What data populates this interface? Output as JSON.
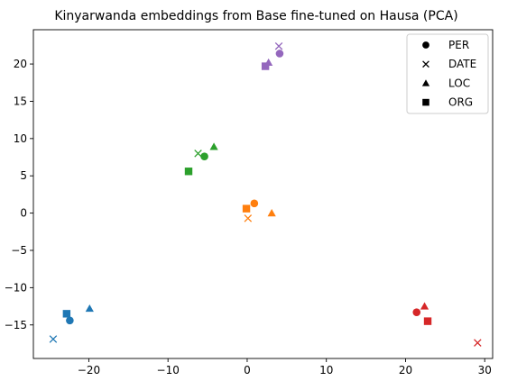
{
  "chart_data": {
    "type": "scatter",
    "title": "Kinyarwanda embeddings from Base fine-tuned on Hausa (PCA)",
    "xlabel": "",
    "ylabel": "",
    "xlim": [
      -27,
      31
    ],
    "ylim": [
      -19.5,
      24.6
    ],
    "xticks": [
      -20,
      -10,
      0,
      10,
      20,
      30
    ],
    "yticks": [
      -15,
      -10,
      -5,
      0,
      5,
      10,
      15,
      20
    ],
    "xtick_labels": [
      "−20",
      "−10",
      "0",
      "10",
      "20",
      "30"
    ],
    "ytick_labels": [
      "−15",
      "−10",
      "−5",
      "0",
      "5",
      "10",
      "15",
      "20"
    ],
    "grid": false,
    "legend": {
      "placement": "top-right",
      "entries": [
        {
          "label": "PER",
          "marker": "circle"
        },
        {
          "label": "DATE",
          "marker": "x"
        },
        {
          "label": "LOC",
          "marker": "triangle"
        },
        {
          "label": "ORG",
          "marker": "square"
        }
      ]
    },
    "groups": [
      {
        "color": "#1f77b4",
        "points": [
          {
            "cls": "PER",
            "x": -22.4,
            "y": -14.4
          },
          {
            "cls": "DATE",
            "x": -24.5,
            "y": -16.9
          },
          {
            "cls": "LOC",
            "x": -19.9,
            "y": -12.8
          },
          {
            "cls": "ORG",
            "x": -22.8,
            "y": -13.5
          }
        ]
      },
      {
        "color": "#ff7f0e",
        "points": [
          {
            "cls": "PER",
            "x": 0.9,
            "y": 1.3
          },
          {
            "cls": "DATE",
            "x": 0.1,
            "y": -0.7
          },
          {
            "cls": "LOC",
            "x": 3.1,
            "y": 0.0
          },
          {
            "cls": "ORG",
            "x": -0.1,
            "y": 0.6
          }
        ]
      },
      {
        "color": "#2ca02c",
        "points": [
          {
            "cls": "PER",
            "x": -5.4,
            "y": 7.6
          },
          {
            "cls": "DATE",
            "x": -6.2,
            "y": 8.0
          },
          {
            "cls": "LOC",
            "x": -4.2,
            "y": 8.9
          },
          {
            "cls": "ORG",
            "x": -7.4,
            "y": 5.6
          }
        ]
      },
      {
        "color": "#d62728",
        "points": [
          {
            "cls": "PER",
            "x": 21.4,
            "y": -13.3
          },
          {
            "cls": "DATE",
            "x": 29.1,
            "y": -17.4
          },
          {
            "cls": "LOC",
            "x": 22.4,
            "y": -12.5
          },
          {
            "cls": "ORG",
            "x": 22.8,
            "y": -14.5
          }
        ]
      },
      {
        "color": "#9467bd",
        "points": [
          {
            "cls": "PER",
            "x": 4.1,
            "y": 21.4
          },
          {
            "cls": "DATE",
            "x": 4.0,
            "y": 22.4
          },
          {
            "cls": "LOC",
            "x": 2.7,
            "y": 20.2
          },
          {
            "cls": "ORG",
            "x": 2.3,
            "y": 19.7
          }
        ]
      }
    ]
  }
}
